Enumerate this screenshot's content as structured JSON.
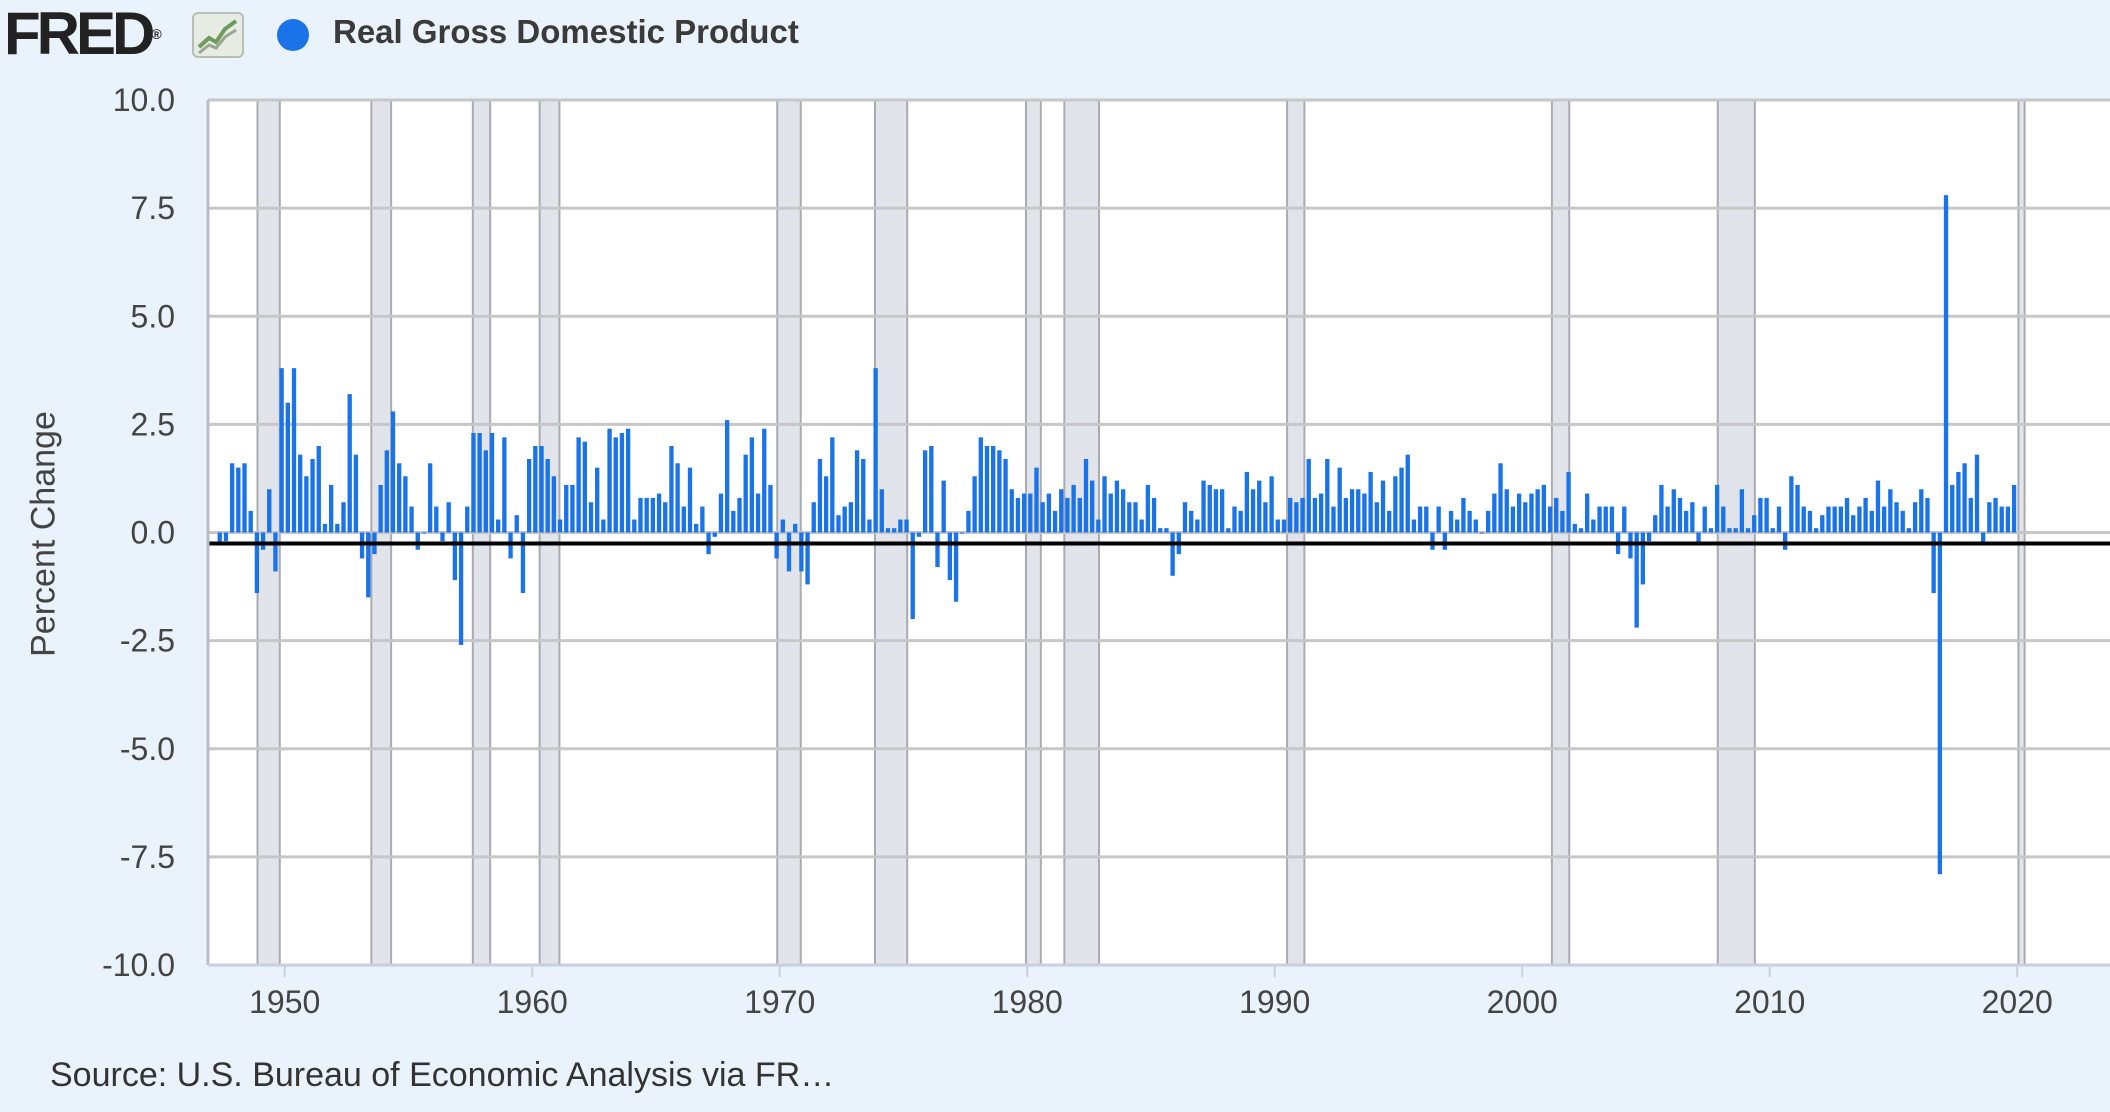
{
  "header": {
    "logo_text": "FRED",
    "logo_mark": "®",
    "legend_label": "Real Gross Domestic Product"
  },
  "footer": {
    "source": "Source: U.S. Bureau of Economic Analysis via FR…"
  },
  "colors": {
    "bar": "#1a73e8",
    "recession": "#e1e4ea",
    "background": "#eaf2fb",
    "plot_bg": "#ffffff",
    "grid": "#c7c7c7"
  },
  "icons": [
    "fred-logo-chart-icon",
    "legend-dot-icon"
  ],
  "chart_data": {
    "type": "bar",
    "ylabel": "Percent Change",
    "series_name": "Real Gross Domestic Product",
    "ylim": [
      -10,
      10
    ],
    "xlim": [
      1946.9,
      2023.75
    ],
    "yticks": [
      "10.0",
      "7.5",
      "5.0",
      "2.5",
      "0.0",
      "-2.5",
      "-5.0",
      "-7.5",
      "-10.0"
    ],
    "xticks": [
      "1950",
      "1960",
      "1970",
      "1980",
      "1990",
      "2000",
      "2010",
      "2020"
    ],
    "grid": true,
    "recessions": [
      [
        1948.9,
        1949.8
      ],
      [
        1953.5,
        1954.3
      ],
      [
        1957.6,
        1958.3
      ],
      [
        1960.3,
        1961.1
      ],
      [
        1969.9,
        1970.85
      ],
      [
        1973.85,
        1975.15
      ],
      [
        1979.95,
        1980.55
      ],
      [
        1981.5,
        1982.9
      ],
      [
        1990.5,
        1991.2
      ],
      [
        2001.2,
        2001.9
      ],
      [
        2007.9,
        2009.4
      ],
      [
        2020.05,
        2020.3
      ]
    ],
    "start": "1947-Q2",
    "values": [
      -0.3,
      -0.2,
      1.6,
      1.5,
      1.6,
      0.5,
      -1.4,
      -0.4,
      1.0,
      -0.9,
      3.8,
      3.0,
      3.8,
      1.8,
      1.3,
      1.7,
      2.0,
      0.2,
      1.1,
      0.2,
      0.7,
      3.2,
      1.8,
      -0.6,
      -1.5,
      -0.5,
      1.1,
      1.9,
      2.8,
      1.6,
      1.3,
      0.6,
      -0.4,
      0.0,
      1.6,
      0.6,
      -0.2,
      0.7,
      -1.1,
      -2.6,
      0.6,
      2.3,
      2.3,
      1.9,
      2.3,
      0.3,
      2.2,
      -0.6,
      0.4,
      -1.4,
      1.7,
      2.0,
      2.0,
      1.7,
      1.3,
      0.3,
      1.1,
      1.1,
      2.2,
      2.1,
      0.7,
      1.5,
      0.3,
      2.4,
      2.2,
      2.3,
      2.4,
      0.3,
      0.8,
      0.8,
      0.8,
      0.9,
      0.7,
      2.0,
      1.6,
      0.6,
      1.5,
      0.2,
      0.6,
      -0.5,
      -0.1,
      0.9,
      2.6,
      0.5,
      0.8,
      1.8,
      2.2,
      0.9,
      2.4,
      1.1,
      -0.6,
      0.3,
      -0.9,
      0.2,
      -0.9,
      -1.2,
      0.7,
      1.7,
      1.3,
      2.2,
      0.4,
      0.6,
      0.7,
      1.9,
      1.7,
      0.3,
      3.8,
      1.0,
      0.1,
      0.1,
      0.3,
      0.3,
      -2.0,
      -0.1,
      1.9,
      2.0,
      -0.8,
      1.2,
      -1.1,
      -1.6,
      0.0,
      0.5,
      1.3,
      2.2,
      2.0,
      2.0,
      1.9,
      1.7,
      1.0,
      0.8,
      0.9,
      0.9,
      1.5,
      0.7,
      0.9,
      0.5,
      1.0,
      0.8,
      1.1,
      0.8,
      1.7,
      1.2,
      0.3,
      1.3,
      0.9,
      1.2,
      1.0,
      0.7,
      0.7,
      0.3,
      1.1,
      0.8,
      0.1,
      0.1,
      -1.0,
      -0.5,
      0.7,
      0.5,
      0.3,
      1.2,
      1.1,
      1.0,
      1.0,
      0.1,
      0.6,
      0.5,
      1.4,
      1.0,
      1.2,
      0.7,
      1.3,
      0.3,
      0.3,
      0.8,
      0.7,
      0.8,
      1.7,
      0.8,
      0.9,
      1.7,
      0.6,
      1.5,
      0.8,
      1.0,
      1.0,
      0.9,
      1.4,
      0.7,
      1.2,
      0.5,
      1.3,
      1.5,
      1.8,
      0.3,
      0.6,
      0.6,
      -0.4,
      0.6,
      -0.4,
      0.5,
      0.3,
      0.8,
      0.5,
      0.3,
      0.0,
      0.5,
      0.9,
      1.6,
      1.0,
      0.6,
      0.9,
      0.7,
      0.9,
      1.0,
      1.1,
      0.6,
      0.8,
      0.5,
      1.4,
      0.2,
      0.1,
      0.9,
      0.3,
      0.6,
      0.6,
      0.6,
      -0.5,
      0.6,
      -0.6,
      -2.2,
      -1.2,
      -0.2,
      0.4,
      1.1,
      0.6,
      1.0,
      0.8,
      0.5,
      0.7,
      -0.3,
      0.6,
      0.1,
      1.1,
      0.6,
      0.1,
      0.1,
      1.0,
      0.1,
      0.4,
      0.8,
      0.8,
      0.1,
      0.6,
      -0.4,
      1.3,
      1.1,
      0.6,
      0.5,
      0.1,
      0.4,
      0.6,
      0.6,
      0.6,
      0.8,
      0.4,
      0.6,
      0.8,
      0.5,
      1.2,
      0.6,
      1.0,
      0.7,
      0.5,
      0.1,
      0.7,
      1.0,
      0.8,
      -1.4,
      -7.9,
      7.8,
      1.1,
      1.4,
      1.6,
      0.8,
      1.8,
      -0.3,
      0.7,
      0.8,
      0.6,
      0.6,
      1.1
    ]
  }
}
